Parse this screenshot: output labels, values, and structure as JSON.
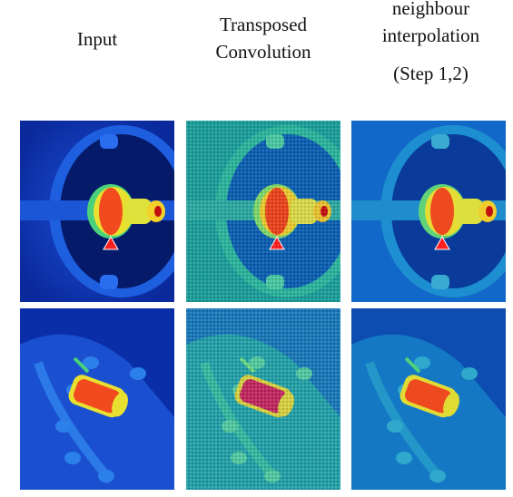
{
  "columns": {
    "input": "Input",
    "transposed_line1": "Transposed",
    "transposed_line2": "Convolution",
    "neighbour_line1": "neighbour",
    "neighbour_line2": "interpolation",
    "neighbour_step": "(Step 1,2)"
  },
  "rows": [
    {
      "scene": "thermal-shaft-frontal"
    },
    {
      "scene": "thermal-bolt-angled"
    }
  ],
  "colors": {
    "cold": "#0b2bb0",
    "cool": "#1b63e0",
    "mid": "#3fd07a",
    "warm": "#e8e02a",
    "hot": "#f0421c",
    "peak": "#ff1010"
  }
}
